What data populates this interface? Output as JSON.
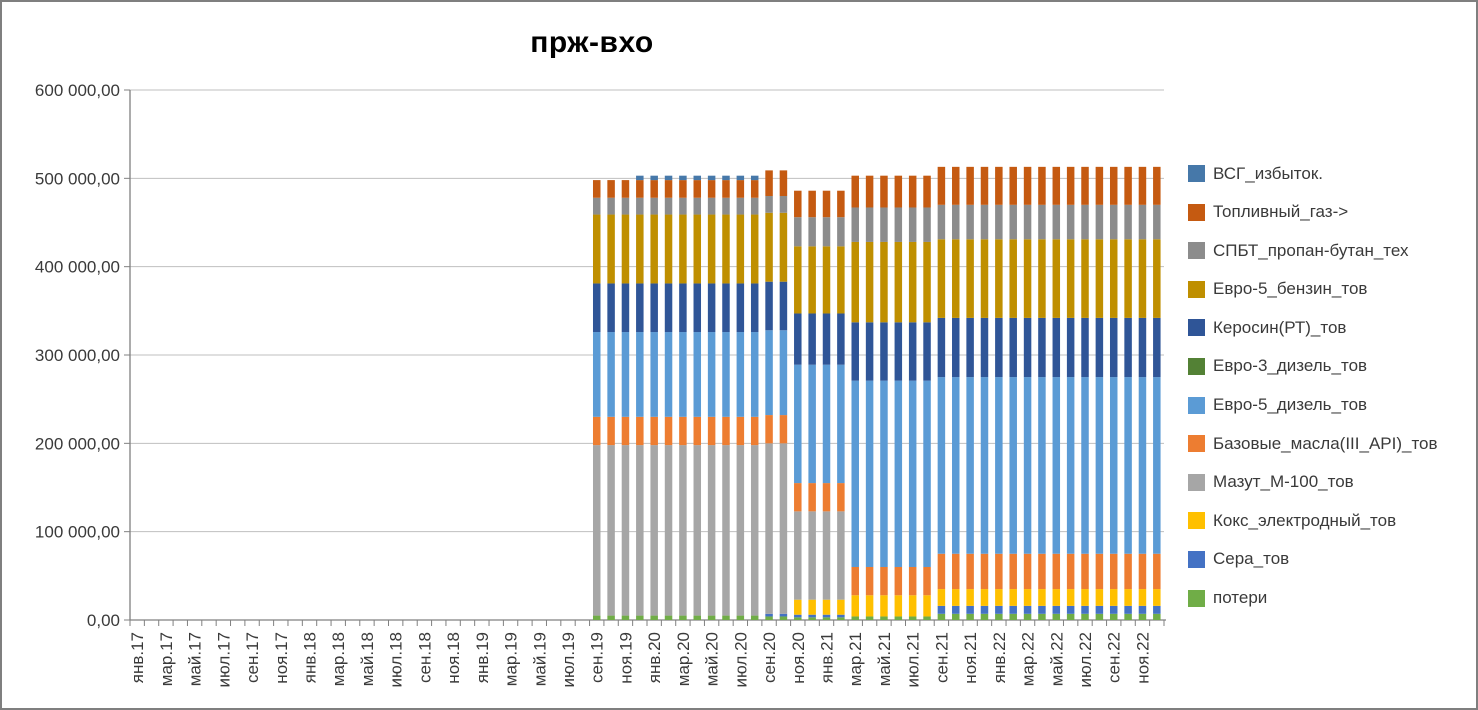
{
  "frame": {
    "background": "#FFFFFF",
    "border_color": "#7F7F7F"
  },
  "chart_data": {
    "type": "bar",
    "stacked": true,
    "title": "прж-вхо",
    "legend_position": "right",
    "grid": "horizontal",
    "ylim": [
      0,
      600000
    ],
    "y_tick_step": 100000,
    "y_tick_labels": [
      "0,00",
      "100 000,00",
      "200 000,00",
      "300 000,00",
      "400 000,00",
      "500 000,00",
      "600 000,00"
    ],
    "x_slot_count": 72,
    "x_label_slot_step": 2,
    "x_tick_labels": [
      "янв.17",
      "мар.17",
      "май.17",
      "июл.17",
      "сен.17",
      "ноя.17",
      "янв.18",
      "мар.18",
      "май.18",
      "июл.18",
      "сен.18",
      "ноя.18",
      "янв.19",
      "мар.19",
      "май.19",
      "июл.19",
      "сен.19",
      "ноя.19",
      "янв.20",
      "мар.20",
      "май.20",
      "июл.20",
      "сен.20",
      "ноя.20",
      "янв.21",
      "мар.21",
      "май.21",
      "июл.21",
      "сен.21",
      "ноя.21",
      "янв.22",
      "мар.22",
      "май.22",
      "июл.22",
      "сен.22",
      "ноя.22"
    ],
    "series": [
      {
        "name": "ВСГ_избыток.",
        "color": "#4678A9"
      },
      {
        "name": "Топливный_газ->",
        "color": "#C55A11"
      },
      {
        "name": "СПБТ_пропан-бутан_тех",
        "color": "#8C8C8C"
      },
      {
        "name": "Евро-5_бензин_тов",
        "color": "#BF8F00"
      },
      {
        "name": "Керосин(РТ)_тов",
        "color": "#2F5597"
      },
      {
        "name": "Евро-3_дизель_тов",
        "color": "#538135"
      },
      {
        "name": "Евро-5_дизель_тов",
        "color": "#5B9BD5"
      },
      {
        "name": "Базовые_масла(III_API)_тов",
        "color": "#ED7D31"
      },
      {
        "name": "Мазут_М-100_тов",
        "color": "#A6A6A6"
      },
      {
        "name": "Кокс_электродный_тов",
        "color": "#FFC000"
      },
      {
        "name": "Сера_тов",
        "color": "#4472C4"
      },
      {
        "name": "потери",
        "color": "#70AD47"
      }
    ],
    "values_order_note": "values arrays follow series[] order (top of stack listed first); stacking is bottom-up from the last series",
    "bar_groups": [
      {
        "from_slot": 32,
        "to_slot": 34,
        "months": "сен.19–ноя.19",
        "values": [
          0,
          20000,
          19000,
          78000,
          55000,
          0,
          96000,
          32000,
          193000,
          0,
          0,
          5000
        ]
      },
      {
        "from_slot": 35,
        "to_slot": 43,
        "months": "дек.19–авг.20",
        "values": [
          5000,
          20000,
          19000,
          78000,
          55000,
          0,
          96000,
          32000,
          193000,
          0,
          0,
          5000
        ]
      },
      {
        "from_slot": 44,
        "to_slot": 45,
        "months": "сен.20–окт.20",
        "values": [
          0,
          29000,
          19000,
          78000,
          55000,
          0,
          96000,
          32000,
          193000,
          0,
          3000,
          4000
        ]
      },
      {
        "from_slot": 46,
        "to_slot": 49,
        "months": "ноя.20–фев.21",
        "values": [
          0,
          30000,
          33000,
          76000,
          58000,
          0,
          134000,
          32000,
          100000,
          17000,
          3000,
          3000
        ]
      },
      {
        "from_slot": 50,
        "to_slot": 55,
        "months": "мар.21–авг.21",
        "values": [
          0,
          36000,
          39000,
          91000,
          66000,
          0,
          211000,
          32000,
          0,
          24000,
          0,
          4000
        ]
      },
      {
        "from_slot": 56,
        "to_slot": 71,
        "months": "сен.21–дек.22",
        "values": [
          0,
          43000,
          39000,
          89000,
          67000,
          0,
          200000,
          40000,
          0,
          19000,
          9000,
          7000
        ]
      }
    ],
    "colors": {
      "gridline": "#BFBFBF",
      "axis": "#808080",
      "tick_text": "#3A3A3A",
      "title_text": "#000000"
    }
  }
}
